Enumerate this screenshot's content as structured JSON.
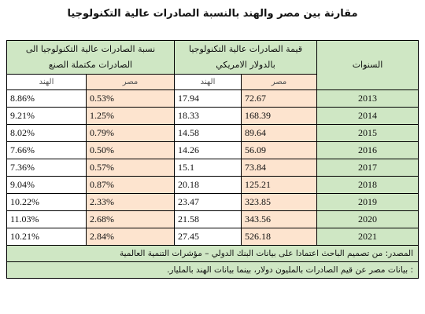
{
  "title": "مقارنة بين مصر والهند بالنسبة الصادرات عالية التكنولوجيا",
  "headers": {
    "years": "السنوات",
    "value_line1": "قيمة الصادرات عالية التكنولوجيا",
    "value_line2": "بالدولار الامريكي",
    "ratio_line1": "نسبة الصادرات عالية التكنولوجيا الى",
    "ratio_line2": "الصادرات مكتملة الصنع",
    "egypt": "مصر",
    "india": "الهند"
  },
  "rows": [
    {
      "year": "2013",
      "value_egypt": "72.67",
      "value_india": "17.94",
      "ratio_egypt": "0.53%",
      "ratio_india": "8.86%"
    },
    {
      "year": "2014",
      "value_egypt": "168.39",
      "value_india": "18.33",
      "ratio_egypt": "1.25%",
      "ratio_india": "9.21%"
    },
    {
      "year": "2015",
      "value_egypt": "89.64",
      "value_india": "14.58",
      "ratio_egypt": "0.79%",
      "ratio_india": "8.02%"
    },
    {
      "year": "2016",
      "value_egypt": "56.09",
      "value_india": "14.26",
      "ratio_egypt": "0.50%",
      "ratio_india": "7.66%"
    },
    {
      "year": "2017",
      "value_egypt": "73.84",
      "value_india": "15.1",
      "ratio_egypt": "0.57%",
      "ratio_india": "7.36%"
    },
    {
      "year": "2018",
      "value_egypt": "125.21",
      "value_india": "20.18",
      "ratio_egypt": "0.87%",
      "ratio_india": "9.04%"
    },
    {
      "year": "2019",
      "value_egypt": "323.85",
      "value_india": "23.47",
      "ratio_egypt": "2.33%",
      "ratio_india": "10.22%"
    },
    {
      "year": "2020",
      "value_egypt": "343.56",
      "value_india": "21.58",
      "ratio_egypt": "2.68%",
      "ratio_india": "11.03%"
    },
    {
      "year": "2021",
      "value_egypt": "526.18",
      "value_india": "27.45",
      "ratio_egypt": "2.84%",
      "ratio_india": "10.21%"
    }
  ],
  "notes": {
    "source": "المصدر: من تصميم الباحث اعتمادا على بيانات البنك الدولي – مؤشرات التنمية العالمية",
    "units": ": بيانات مصر عن قيم الصادرات بالمليون دولار، بينما بيانات الهند بالمليار."
  },
  "colors": {
    "header_green": "#cfe7c4",
    "egypt_peach": "#fde4cf",
    "border": "#000000"
  }
}
